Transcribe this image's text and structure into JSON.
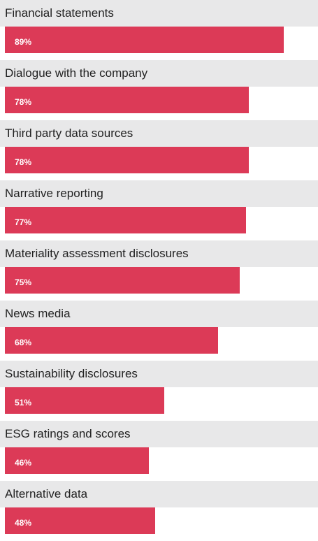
{
  "colors": {
    "bar": "#dc3a57",
    "label_band": "#e8e8e9",
    "label_text": "#222222",
    "value_text": "#ffffff"
  },
  "chart_data": {
    "type": "bar",
    "orientation": "horizontal",
    "categories": [
      "Financial statements",
      "Dialogue with the company",
      "Third party data sources",
      "Narrative reporting",
      "Materiality assessment disclosures",
      "News media",
      "Sustainability disclosures",
      "ESG ratings and scores",
      "Alternative data"
    ],
    "values": [
      89,
      78,
      78,
      77,
      75,
      68,
      51,
      46,
      48
    ],
    "value_labels": [
      "89%",
      "78%",
      "78%",
      "77%",
      "75%",
      "68%",
      "51%",
      "46%",
      "48%"
    ],
    "unit": "%",
    "xlim": [
      0,
      100
    ],
    "grid": false,
    "legend": "none"
  }
}
